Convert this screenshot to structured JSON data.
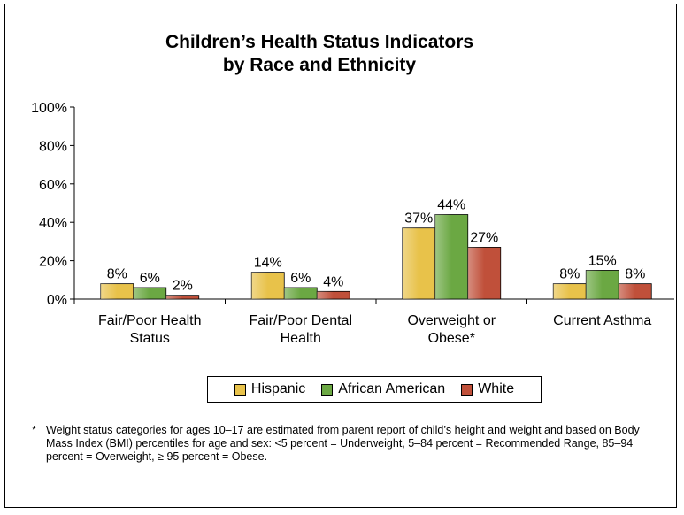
{
  "chart_data": {
    "type": "bar",
    "title_line1": "Children’s Health Status Indicators",
    "title_line2": "by Race and Ethnicity",
    "categories": [
      [
        "Fair/Poor Health",
        "Status"
      ],
      [
        "Fair/Poor Dental",
        "Health"
      ],
      [
        "Overweight or",
        "Obese*"
      ],
      [
        "Current Asthma"
      ]
    ],
    "series": [
      {
        "name": "Hispanic",
        "values": [
          8,
          14,
          37,
          8
        ],
        "color": "#E8C24A"
      },
      {
        "name": "African American",
        "values": [
          6,
          6,
          44,
          15
        ],
        "color": "#6BA843"
      },
      {
        "name": "White",
        "values": [
          2,
          4,
          27,
          8
        ],
        "color": "#C0503A"
      }
    ],
    "data_labels": [
      [
        "8%",
        "6%",
        "2%"
      ],
      [
        "14%",
        "6%",
        "4%"
      ],
      [
        "37%",
        "44%",
        "27%"
      ],
      [
        "8%",
        "15%",
        "8%"
      ]
    ],
    "y_ticks": [
      "0%",
      "20%",
      "40%",
      "60%",
      "80%",
      "100%"
    ],
    "ylim": [
      0,
      100
    ],
    "legend_position": "bottom-center"
  },
  "footnote": {
    "marker": "*",
    "text": "Weight status categories for ages 10–17 are estimated from parent report of child’s height and weight and based on Body Mass Index (BMI) percentiles for age and sex: <5 percent = Underweight, 5–84 percent = Recommended Range, 85–94 percent = Overweight, ≥ 95 percent = Obese."
  }
}
